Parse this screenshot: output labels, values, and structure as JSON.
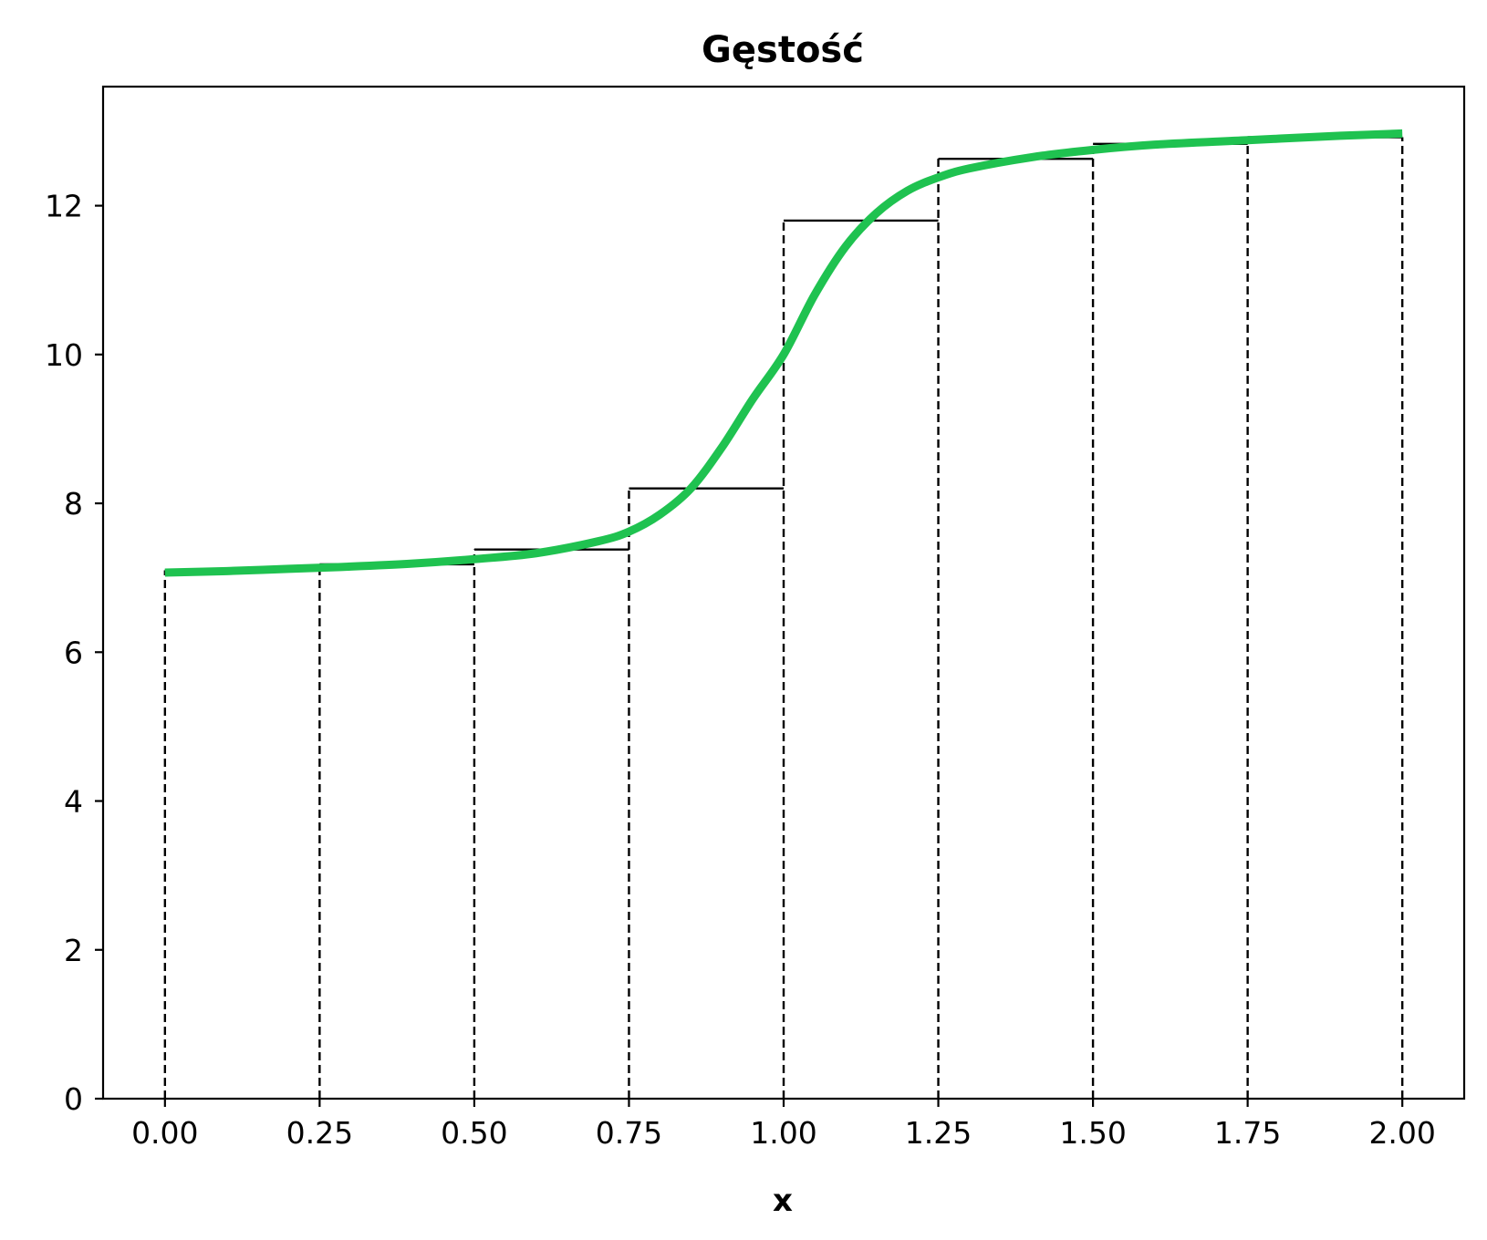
{
  "chart_data": {
    "type": "line",
    "title": "Gęstość",
    "xlabel": "x",
    "ylabel": "",
    "xlim": [
      -0.1,
      2.1
    ],
    "ylim": [
      0,
      13.6
    ],
    "xticks": [
      "0.00",
      "0.25",
      "0.50",
      "0.75",
      "1.00",
      "1.25",
      "1.50",
      "1.75",
      "2.00"
    ],
    "yticks": [
      "0",
      "2",
      "4",
      "6",
      "8",
      "10",
      "12"
    ],
    "grid": false,
    "legend": "none",
    "colors": {
      "curve": "#1fc250",
      "steps": "#000000",
      "dashed": "#000000"
    },
    "series": [
      {
        "type": "line",
        "x": [
          0.0,
          0.1,
          0.2,
          0.3,
          0.4,
          0.5,
          0.6,
          0.7,
          0.75,
          0.8,
          0.85,
          0.9,
          0.95,
          1.0,
          1.05,
          1.1,
          1.15,
          1.2,
          1.25,
          1.3,
          1.4,
          1.5,
          1.6,
          1.75,
          1.9,
          2.0
        ],
        "y": [
          7.07,
          7.09,
          7.12,
          7.15,
          7.19,
          7.25,
          7.33,
          7.49,
          7.62,
          7.85,
          8.2,
          8.75,
          9.4,
          10.0,
          10.8,
          11.45,
          11.9,
          12.2,
          12.38,
          12.5,
          12.65,
          12.75,
          12.82,
          12.88,
          12.94,
          12.97
        ]
      },
      {
        "type": "step",
        "edges": [
          0.0,
          0.25,
          0.5,
          0.75,
          1.0,
          1.25,
          1.5,
          1.75,
          2.0
        ],
        "values": [
          7.1,
          7.18,
          7.38,
          8.2,
          11.8,
          12.63,
          12.83,
          12.92
        ]
      }
    ]
  }
}
